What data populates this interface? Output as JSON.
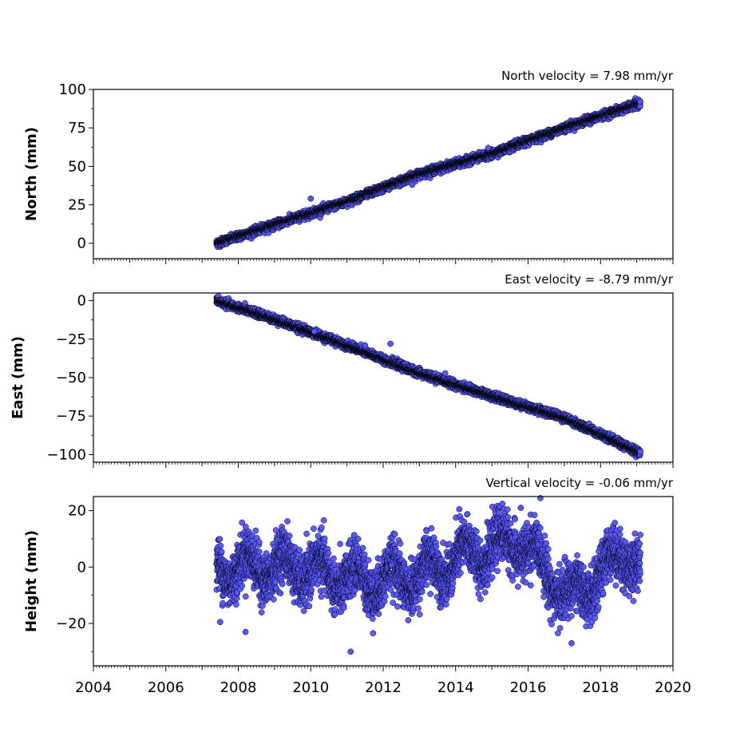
{
  "chart_data": [
    {
      "type": "scatter",
      "ylabel": "North (mm)",
      "annotation": "North velocity = 7.98 mm/yr",
      "velocity_mm_per_yr": 7.98,
      "xlim": [
        2004,
        2020
      ],
      "ylim": [
        -10,
        100
      ],
      "yticks": [
        0,
        25,
        50,
        75,
        100
      ],
      "yticklabels": [
        "0",
        "25",
        "50",
        "75",
        "100"
      ],
      "xtick_labels_visible": false,
      "series": [
        {
          "x_range": [
            2007.4,
            2019.1
          ],
          "trend": [
            [
              2007.4,
              0
            ],
            [
              2009.0,
              12
            ],
            [
              2011.0,
              27
            ],
            [
              2013.0,
              45
            ],
            [
              2015.0,
              58
            ],
            [
              2017.0,
              75
            ],
            [
              2019.1,
              91
            ]
          ],
          "noise_std": 1.2,
          "outliers": [
            [
              2010.0,
              29
            ],
            [
              2012.8,
              38
            ],
            [
              2014.9,
              62
            ]
          ]
        }
      ],
      "marker_color": "#5555ff",
      "marker_edge": "#000000"
    },
    {
      "type": "scatter",
      "ylabel": "East (mm)",
      "annotation": "East velocity = -8.79 mm/yr",
      "velocity_mm_per_yr": -8.79,
      "xlim": [
        2004,
        2020
      ],
      "ylim": [
        -105,
        5
      ],
      "yticks": [
        -100,
        -75,
        -50,
        -25,
        0
      ],
      "yticklabels": [
        "−100",
        "−75",
        "−50",
        "−25",
        "0"
      ],
      "xtick_labels_visible": false,
      "series": [
        {
          "x_range": [
            2007.4,
            2019.1
          ],
          "trend": [
            [
              2007.4,
              0
            ],
            [
              2009.0,
              -12
            ],
            [
              2011.0,
              -29
            ],
            [
              2013.0,
              -47
            ],
            [
              2015.0,
              -62
            ],
            [
              2017.0,
              -76
            ],
            [
              2019.1,
              -99
            ]
          ],
          "noise_std": 1.2,
          "outliers": [
            [
              2011.5,
              -29
            ],
            [
              2012.2,
              -28
            ],
            [
              2010.1,
              -20
            ]
          ]
        }
      ],
      "marker_color": "#5555ff",
      "marker_edge": "#000000"
    },
    {
      "type": "scatter",
      "ylabel": "Height (mm)",
      "annotation": "Vertical velocity = -0.06 mm/yr",
      "velocity_mm_per_yr": -0.06,
      "xlim": [
        2004,
        2020
      ],
      "ylim": [
        -35,
        25
      ],
      "yticks": [
        -20,
        0,
        20
      ],
      "yticklabels": [
        "−20",
        "0",
        "20"
      ],
      "xtick_labels_visible": true,
      "xticks": [
        2004,
        2006,
        2008,
        2010,
        2012,
        2014,
        2016,
        2018,
        2020
      ],
      "xticklabels": [
        "2004",
        "2006",
        "2008",
        "2010",
        "2012",
        "2014",
        "2016",
        "2018",
        "2020"
      ],
      "series": [
        {
          "x_range": [
            2007.4,
            2019.1
          ],
          "seasonal_amplitude": 5,
          "noise_std": 4.5,
          "trend": [
            [
              2007.4,
              0
            ],
            [
              2009.5,
              0
            ],
            [
              2011.5,
              -5
            ],
            [
              2013.0,
              -3
            ],
            [
              2014.5,
              5
            ],
            [
              2015.8,
              9
            ],
            [
              2017.2,
              -12
            ],
            [
              2018.7,
              6
            ],
            [
              2019.1,
              0
            ]
          ],
          "outliers": [
            [
              2011.1,
              -30
            ],
            [
              2014.1,
              20.5
            ],
            [
              2015.8,
              21
            ],
            [
              2017.2,
              -27
            ],
            [
              2007.5,
              -19.5
            ],
            [
              2008.2,
              -23
            ]
          ]
        }
      ],
      "marker_color": "#5555ff",
      "marker_edge": "#000000"
    }
  ]
}
